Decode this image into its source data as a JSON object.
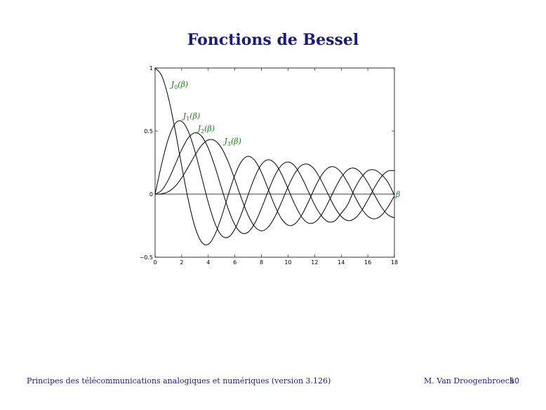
{
  "slide": {
    "title": "Fonctions de Bessel"
  },
  "footer": {
    "course": "Principes des télécommunications analogiques et numériques (version 3.126)",
    "author": "M. Van Droogenbroeck",
    "page": "50"
  },
  "colors": {
    "title": "#1a1a80",
    "labels": "#1a7a1a",
    "curves": "#000000"
  },
  "chart_data": {
    "type": "line",
    "title": "",
    "xlabel": "",
    "x_axis_symbol": "β",
    "ylabel": "",
    "xlim": [
      0,
      18
    ],
    "ylim": [
      -0.5,
      1
    ],
    "xticks": [
      "0",
      "2",
      "4",
      "6",
      "8",
      "10",
      "12",
      "14",
      "16",
      "18"
    ],
    "yticks": [
      "−0.5",
      "0",
      "0.5",
      "1"
    ],
    "grid": false,
    "series": [
      {
        "name": "J0(β)",
        "label_main": "J",
        "label_sub": "0",
        "label_arg": "(β)",
        "label_at": [
          1.2,
          0.85
        ],
        "x": [
          0,
          0.5,
          1,
          1.5,
          2,
          2.5,
          3,
          3.5,
          4,
          4.5,
          5,
          5.5,
          6,
          6.5,
          7,
          7.5,
          8,
          8.5,
          9,
          9.5,
          10,
          10.5,
          11,
          11.5,
          12,
          12.5,
          13,
          13.5,
          14,
          14.5,
          15,
          15.5,
          16,
          16.5,
          17,
          17.5,
          18
        ],
        "y": [
          1,
          0.938,
          0.765,
          0.512,
          0.224,
          -0.048,
          -0.26,
          -0.38,
          -0.397,
          -0.321,
          -0.178,
          -0.007,
          0.151,
          0.26,
          0.3,
          0.266,
          0.172,
          0.042,
          -0.09,
          -0.194,
          -0.246,
          -0.237,
          -0.171,
          -0.068,
          0.048,
          0.147,
          0.207,
          0.215,
          0.171,
          0.088,
          -0.014,
          -0.109,
          -0.175,
          -0.196,
          -0.17,
          -0.104,
          -0.013
        ]
      },
      {
        "name": "J1(β)",
        "label_main": "J",
        "label_sub": "1",
        "label_arg": "(β)",
        "label_at": [
          2.1,
          0.6
        ],
        "x": [
          0,
          0.5,
          1,
          1.5,
          2,
          2.5,
          3,
          3.5,
          4,
          4.5,
          5,
          5.5,
          6,
          6.5,
          7,
          7.5,
          8,
          8.5,
          9,
          9.5,
          10,
          10.5,
          11,
          11.5,
          12,
          12.5,
          13,
          13.5,
          14,
          14.5,
          15,
          15.5,
          16,
          16.5,
          17,
          17.5,
          18
        ],
        "y": [
          0,
          0.242,
          0.44,
          0.558,
          0.577,
          0.497,
          0.339,
          0.137,
          -0.066,
          -0.231,
          -0.328,
          -0.341,
          -0.277,
          -0.154,
          -0.005,
          0.135,
          0.235,
          0.273,
          0.245,
          0.161,
          0.043,
          -0.079,
          -0.177,
          -0.228,
          -0.223,
          -0.166,
          -0.07,
          0.038,
          0.133,
          0.193,
          0.205,
          0.167,
          0.09,
          -0.007,
          -0.098,
          -0.163,
          -0.188
        ]
      },
      {
        "name": "J2(β)",
        "label_main": "J",
        "label_sub": "2",
        "label_arg": "(β)",
        "label_at": [
          3.2,
          0.5
        ],
        "x": [
          0,
          0.5,
          1,
          1.5,
          2,
          2.5,
          3,
          3.5,
          4,
          4.5,
          5,
          5.5,
          6,
          6.5,
          7,
          7.5,
          8,
          8.5,
          9,
          9.5,
          10,
          10.5,
          11,
          11.5,
          12,
          12.5,
          13,
          13.5,
          14,
          14.5,
          15,
          15.5,
          16,
          16.5,
          17,
          17.5,
          18
        ],
        "y": [
          0,
          0.031,
          0.115,
          0.232,
          0.353,
          0.446,
          0.486,
          0.459,
          0.364,
          0.218,
          0.047,
          -0.117,
          -0.243,
          -0.307,
          -0.301,
          -0.23,
          -0.113,
          0.022,
          0.145,
          0.228,
          0.255,
          0.224,
          0.139,
          0.028,
          -0.085,
          -0.17,
          -0.218,
          -0.213,
          -0.152,
          -0.08,
          0.041,
          0.131,
          0.186,
          0.192,
          0.158,
          0.096,
          -0.008
        ]
      },
      {
        "name": "J3(β)",
        "label_main": "J",
        "label_sub": "3",
        "label_arg": "(β)",
        "label_at": [
          5.2,
          0.4
        ],
        "x": [
          0,
          0.5,
          1,
          1.5,
          2,
          2.5,
          3,
          3.5,
          4,
          4.5,
          5,
          5.5,
          6,
          6.5,
          7,
          7.5,
          8,
          8.5,
          9,
          9.5,
          10,
          10.5,
          11,
          11.5,
          12,
          12.5,
          13,
          13.5,
          14,
          14.5,
          15,
          15.5,
          16,
          16.5,
          17,
          17.5,
          18
        ],
        "y": [
          0,
          0.003,
          0.02,
          0.061,
          0.129,
          0.217,
          0.309,
          0.387,
          0.43,
          0.424,
          0.365,
          0.256,
          0.115,
          -0.035,
          -0.168,
          -0.258,
          -0.291,
          -0.262,
          -0.181,
          -0.067,
          0.058,
          0.163,
          0.227,
          0.237,
          0.195,
          0.108,
          0.003,
          -0.102,
          -0.177,
          -0.21,
          -0.194,
          -0.136,
          -0.046,
          0.052,
          0.135,
          0.183,
          0.186
        ]
      }
    ]
  }
}
